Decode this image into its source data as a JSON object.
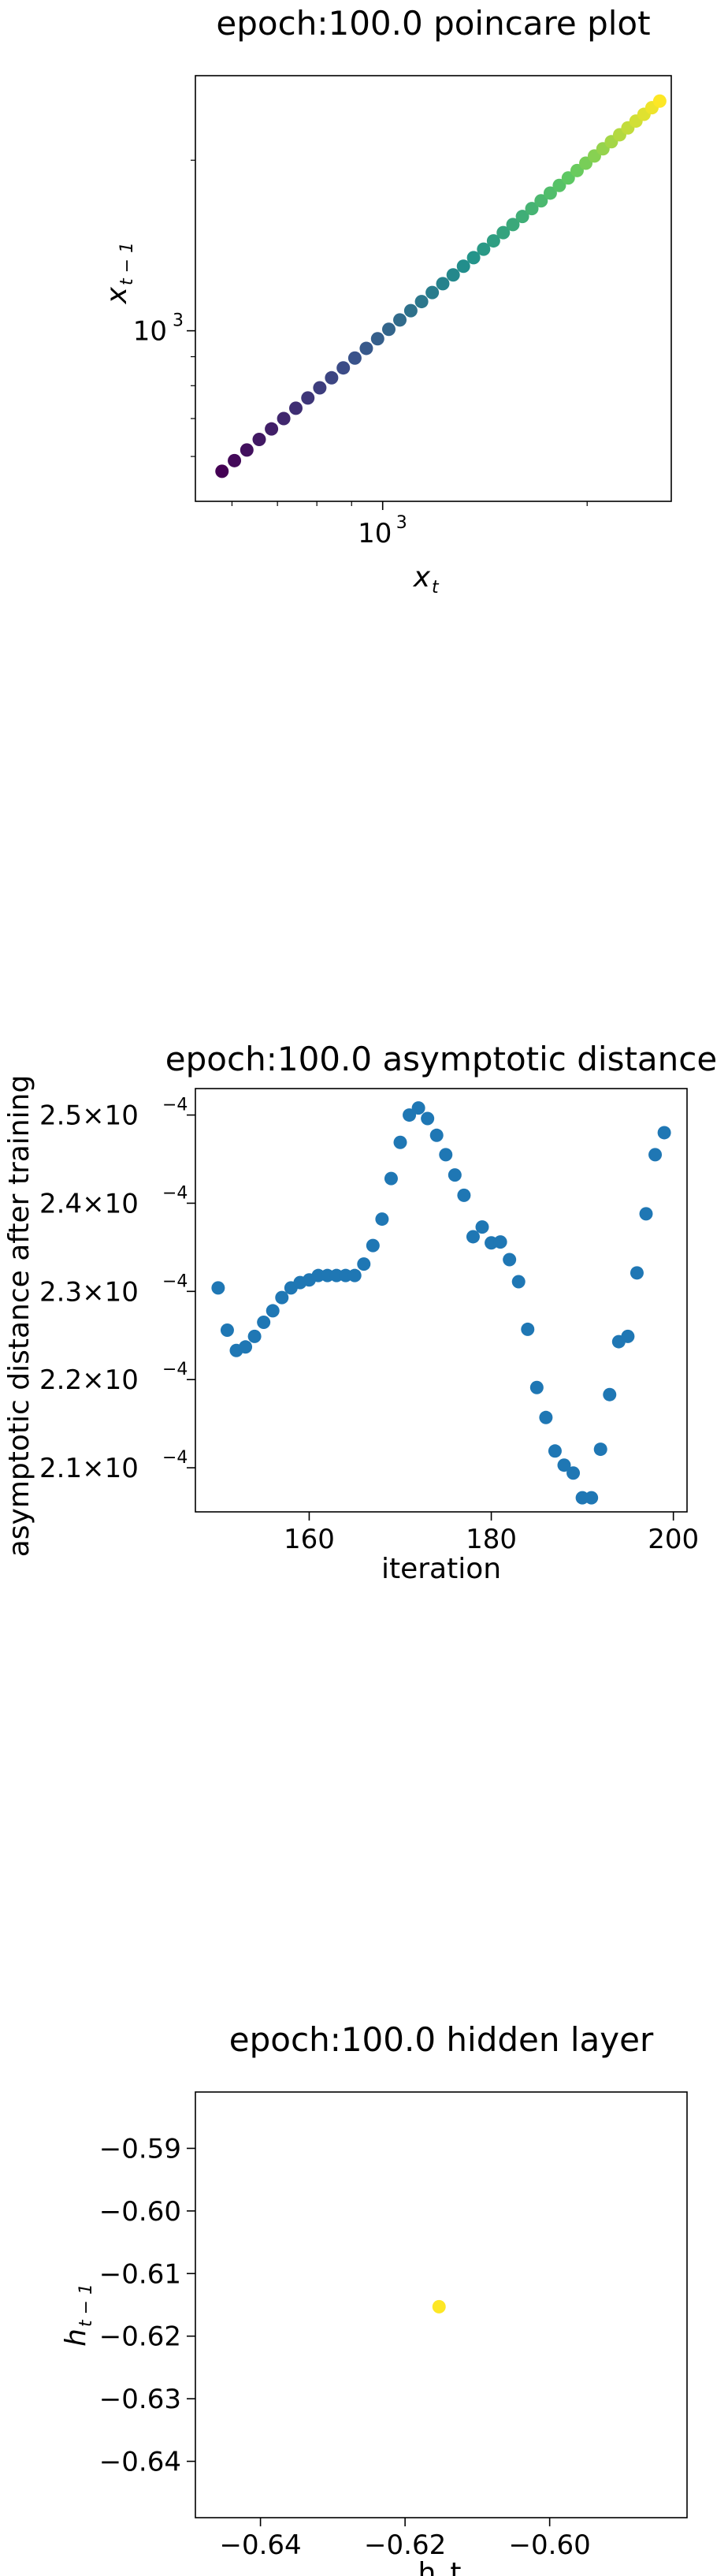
{
  "chart_data": [
    {
      "type": "scatter",
      "title": "epoch:100.0 poincare plot",
      "xlabel_base": "x",
      "xlabel_sub": "t",
      "ylabel_base": "x",
      "ylabel_sub": "t − 1",
      "xscale": "log",
      "yscale": "log",
      "xlim": [
        530,
        2660
      ],
      "ylim": [
        500,
        2820
      ],
      "x_tick_labels": [
        {
          "value": 1000,
          "base": "10",
          "exp": "3"
        }
      ],
      "y_tick_labels": [
        {
          "value": 1000,
          "base": "10",
          "exp": "3"
        }
      ],
      "x_minor_ticks": [
        600,
        700,
        800,
        900,
        2000
      ],
      "y_minor_ticks": [
        600,
        700,
        800,
        900,
        2000
      ],
      "colormap": [
        "#440154",
        "#3b528b",
        "#21918c",
        "#5ec962",
        "#fde725"
      ],
      "x": [
        580,
        605,
        631,
        658,
        686,
        715,
        745,
        776,
        808,
        841,
        875,
        910,
        946,
        983,
        1021,
        1060,
        1100,
        1141,
        1183,
        1226,
        1270,
        1315,
        1361,
        1408,
        1456,
        1505,
        1555,
        1606,
        1658,
        1711,
        1765,
        1820,
        1876,
        1933,
        1991,
        2050,
        2110,
        2171,
        2233,
        2296,
        2360,
        2425,
        2491,
        2558
      ],
      "y": [
        565,
        590,
        616,
        643,
        671,
        700,
        730,
        761,
        793,
        826,
        860,
        895,
        931,
        968,
        1006,
        1045,
        1085,
        1126,
        1168,
        1211,
        1255,
        1300,
        1346,
        1393,
        1441,
        1490,
        1540,
        1591,
        1643,
        1696,
        1750,
        1805,
        1861,
        1918,
        1976,
        2035,
        2095,
        2156,
        2218,
        2281,
        2345,
        2410,
        2476,
        2543
      ],
      "grid": false,
      "legend": "none"
    },
    {
      "type": "scatter",
      "title": "epoch:100.0 asymptotic distance",
      "xlabel": "iteration",
      "ylabel": "asymptotic distance after training",
      "xlim": [
        147.5,
        201.5
      ],
      "ylim": [
        0.000205,
        0.000253
      ],
      "x_ticks": [
        160,
        180,
        200
      ],
      "y_ticks": [
        {
          "value": 0.00021,
          "mant": "2.1",
          "base": "10",
          "exp": "−4"
        },
        {
          "value": 0.00022,
          "mant": "2.2",
          "base": "10",
          "exp": "−4"
        },
        {
          "value": 0.00023,
          "mant": "2.3",
          "base": "10",
          "exp": "−4"
        },
        {
          "value": 0.00024,
          "mant": "2.4",
          "base": "10",
          "exp": "−4"
        },
        {
          "value": 0.00025,
          "mant": "2.5",
          "base": "10",
          "exp": "−4"
        }
      ],
      "color": "#1f77b4",
      "x": [
        150,
        151,
        152,
        153,
        154,
        155,
        156,
        157,
        158,
        159,
        160,
        161,
        162,
        163,
        164,
        165,
        166,
        167,
        168,
        169,
        170,
        171,
        172,
        173,
        174,
        175,
        176,
        177,
        178,
        179,
        180,
        181,
        182,
        183,
        184,
        185,
        186,
        187,
        188,
        189,
        190,
        191,
        192,
        193,
        194,
        195,
        196,
        197,
        198,
        199
      ],
      "y": [
        0.0002304,
        0.0002256,
        0.0002233,
        0.0002237,
        0.0002249,
        0.0002265,
        0.0002278,
        0.0002293,
        0.0002304,
        0.000231,
        0.0002313,
        0.0002318,
        0.0002318,
        0.0002318,
        0.0002318,
        0.0002318,
        0.0002331,
        0.0002352,
        0.0002382,
        0.0002428,
        0.0002469,
        0.00025,
        0.0002508,
        0.0002496,
        0.0002477,
        0.0002455,
        0.0002432,
        0.0002409,
        0.0002362,
        0.0002373,
        0.0002355,
        0.0002356,
        0.0002336,
        0.0002311,
        0.0002257,
        0.0002191,
        0.0002157,
        0.0002119,
        0.0002103,
        0.0002094,
        0.0002066,
        0.0002066,
        0.0002121,
        0.0002183,
        0.0002243,
        0.0002249,
        0.0002321,
        0.0002388,
        0.0002455,
        0.000248
      ],
      "grid": false,
      "legend": "none"
    },
    {
      "type": "scatter",
      "title": "epoch:100.0 hidden layer",
      "xlabel": "h_t",
      "ylabel_base": "h",
      "ylabel_sub": "t − 1",
      "xlim": [
        -0.649,
        -0.581
      ],
      "ylim": [
        -0.649,
        -0.581
      ],
      "x_ticks": [
        {
          "value": -0.64,
          "label": "−0.64"
        },
        {
          "value": -0.62,
          "label": "−0.62"
        },
        {
          "value": -0.6,
          "label": "−0.60"
        }
      ],
      "y_ticks": [
        {
          "value": -0.64,
          "label": "−0.64"
        },
        {
          "value": -0.63,
          "label": "−0.63"
        },
        {
          "value": -0.62,
          "label": "−0.62"
        },
        {
          "value": -0.61,
          "label": "−0.61"
        },
        {
          "value": -0.6,
          "label": "−0.60"
        },
        {
          "value": -0.59,
          "label": "−0.59"
        }
      ],
      "color": "#fde725",
      "x": [
        -0.6153
      ],
      "y": [
        -0.6153
      ],
      "grid": false,
      "legend": "none"
    }
  ]
}
